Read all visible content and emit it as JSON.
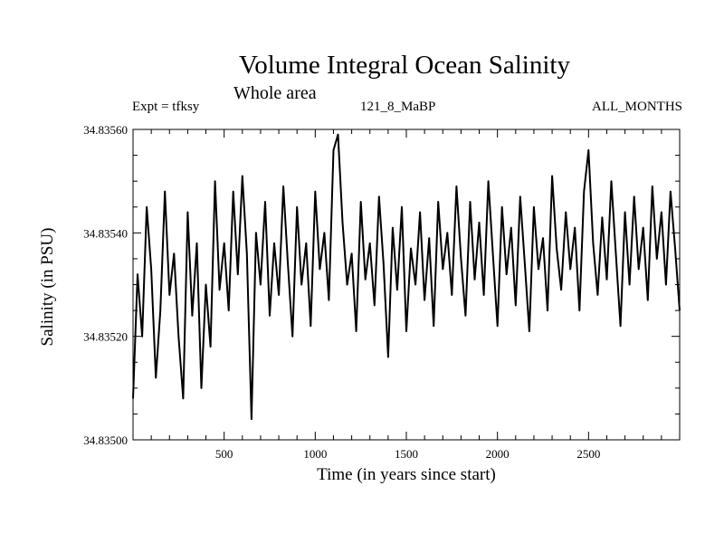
{
  "chart_data": {
    "type": "line",
    "title": "Volume Integral Ocean Salinity",
    "subtitle": "Whole area",
    "experiment_label": "Expt = tfksy",
    "run_label": "121_8_MaBP",
    "months_label": "ALL_MONTHS",
    "xlabel": "Time (in years since start)",
    "ylabel": "Salinity (in PSU)",
    "xlim": [
      0,
      3000
    ],
    "ylim": [
      34.835,
      34.8356
    ],
    "xticks": [
      500,
      1000,
      1500,
      2000,
      2500
    ],
    "xtick_labels": [
      "500",
      "1000",
      "1500",
      "2000",
      "2500"
    ],
    "yticks": [
      34.835,
      34.8352,
      34.8354,
      34.8356
    ],
    "ytick_labels": [
      "34.83500",
      "34.83520",
      "34.83540",
      "34.83560"
    ],
    "grid": false,
    "series": [
      {
        "name": "Salinity",
        "color": "#000000",
        "x": [
          0,
          25,
          50,
          75,
          100,
          125,
          150,
          175,
          200,
          225,
          250,
          275,
          300,
          325,
          350,
          375,
          400,
          425,
          450,
          475,
          500,
          525,
          550,
          575,
          600,
          625,
          650,
          675,
          700,
          725,
          750,
          775,
          800,
          825,
          850,
          875,
          900,
          925,
          950,
          975,
          1000,
          1025,
          1050,
          1075,
          1100,
          1125,
          1150,
          1175,
          1200,
          1225,
          1250,
          1275,
          1300,
          1325,
          1350,
          1375,
          1400,
          1425,
          1450,
          1475,
          1500,
          1525,
          1550,
          1575,
          1600,
          1625,
          1650,
          1675,
          1700,
          1725,
          1750,
          1775,
          1800,
          1825,
          1850,
          1875,
          1900,
          1925,
          1950,
          1975,
          2000,
          2025,
          2050,
          2075,
          2100,
          2125,
          2150,
          2175,
          2200,
          2225,
          2250,
          2275,
          2300,
          2325,
          2350,
          2375,
          2400,
          2425,
          2450,
          2475,
          2500,
          2525,
          2550,
          2575,
          2600,
          2625,
          2650,
          2675,
          2700,
          2725,
          2750,
          2775,
          2800,
          2825,
          2850,
          2875,
          2900,
          2925,
          2950,
          2975,
          3000
        ],
        "values": [
          34.83508,
          34.83532,
          34.8352,
          34.83545,
          34.83533,
          34.83512,
          34.83525,
          34.83548,
          34.83528,
          34.83536,
          34.8352,
          34.83508,
          34.83544,
          34.83524,
          34.83538,
          34.8351,
          34.8353,
          34.83518,
          34.8355,
          34.83529,
          34.83538,
          34.83525,
          34.83548,
          34.83532,
          34.83551,
          34.83536,
          34.83504,
          34.8354,
          34.8353,
          34.83546,
          34.83524,
          34.83538,
          34.83528,
          34.83549,
          34.83534,
          34.8352,
          34.83545,
          34.8353,
          34.83538,
          34.83522,
          34.83548,
          34.83533,
          34.8354,
          34.83527,
          34.83556,
          34.83559,
          34.83542,
          34.8353,
          34.83536,
          34.83521,
          34.83546,
          34.83531,
          34.83538,
          34.83526,
          34.83547,
          34.83534,
          34.83516,
          34.83541,
          34.83529,
          34.83545,
          34.83521,
          34.83537,
          34.8353,
          34.83544,
          34.83527,
          34.83539,
          34.83522,
          34.83546,
          34.83533,
          34.8354,
          34.83528,
          34.83549,
          34.83535,
          34.83524,
          34.83546,
          34.83531,
          34.83542,
          34.83528,
          34.8355,
          34.83536,
          34.83522,
          34.83545,
          34.83532,
          34.83541,
          34.83526,
          34.83547,
          34.83534,
          34.83521,
          34.83545,
          34.83533,
          34.83539,
          34.83525,
          34.83551,
          34.83537,
          34.83529,
          34.83544,
          34.83533,
          34.83541,
          34.83525,
          34.83548,
          34.83556,
          34.83538,
          34.83528,
          34.83543,
          34.83531,
          34.8355,
          34.83536,
          34.83522,
          34.83544,
          34.8353,
          34.83547,
          34.83533,
          34.83541,
          34.83527,
          34.83549,
          34.83535,
          34.83544,
          34.8353,
          34.83548,
          34.83537,
          34.83525
        ]
      }
    ]
  }
}
